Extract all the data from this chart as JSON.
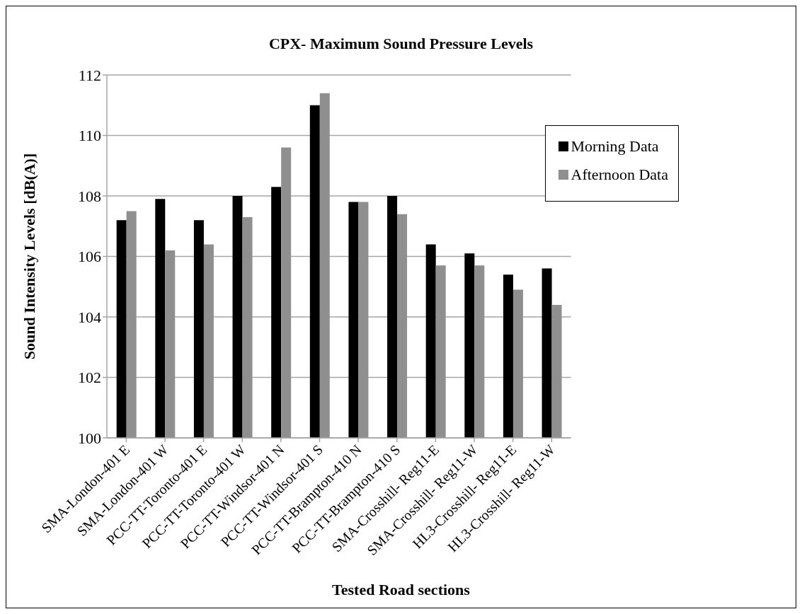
{
  "chart_data": {
    "type": "bar",
    "title": "CPX- Maximum Sound Pressure Levels",
    "xlabel": "Tested Road sections",
    "ylabel": "Sound Intensity Levels [dB(A)]",
    "categories": [
      "SMA-London-401 E",
      "SMA-London-401 W",
      "PCC-TT-Toronto-401 E",
      "PCC-TT-Toronto-401 W",
      "PCC-TT-Windsor-401 N",
      "PCC-TT-Windsor-401 S",
      "PCC-TT-Brampton-410 N",
      "PCC-TT-Brampton-410 S",
      "SMA-Crosshill- Reg11-E",
      "SMA-Crosshill- Reg11-W",
      "HL3-Crosshill- Reg11-E",
      "HL3-Crosshill- Reg11-W"
    ],
    "series": [
      {
        "name": "Morning Data",
        "color": "#000000",
        "values": [
          107.2,
          107.9,
          107.2,
          108.0,
          108.3,
          111.0,
          107.8,
          108.0,
          106.4,
          106.1,
          105.4,
          105.6
        ]
      },
      {
        "name": "Afternoon Data",
        "color": "#8f8f8f",
        "values": [
          107.5,
          106.2,
          106.4,
          107.3,
          109.6,
          111.4,
          107.8,
          107.4,
          105.7,
          105.7,
          104.9,
          104.4
        ]
      }
    ],
    "ylim": [
      100,
      112
    ],
    "yticks": [
      100,
      102,
      104,
      106,
      108,
      110,
      112
    ],
    "grid": "y",
    "legend": "top right"
  }
}
